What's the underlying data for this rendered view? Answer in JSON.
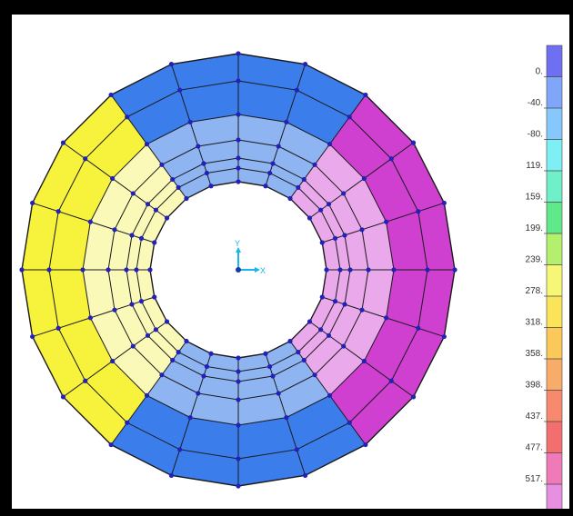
{
  "legend": {
    "labels": [
      "0.",
      "-40.",
      "-80.",
      "-119.",
      "-159.",
      "-199.",
      "-239.",
      "-278.",
      "-318.",
      "-358.",
      "-398.",
      "-437.",
      "-477.",
      "-517."
    ],
    "colors": [
      "#6f6ff2",
      "#7fa6f8",
      "#86c8fb",
      "#7ef0f5",
      "#6ff0c8",
      "#5fe98a",
      "#b4f06e",
      "#f7f777",
      "#fbe45a",
      "#fbc95a",
      "#f8ac6a",
      "#f6896e",
      "#f36f6f",
      "#f07ab8",
      "#e78fe0"
    ]
  },
  "axes": {
    "y_label": "Y",
    "x_label": "X"
  },
  "colors": {
    "blue_dark": "#3c7dec",
    "blue_light": "#8fb4f2",
    "yellow_outer": "#f7f23c",
    "yellow_inner": "#fbf9b8",
    "magenta_outer": "#cf3fd0",
    "magenta_inner": "#e9a9ea",
    "node": "#2222bb",
    "axis": "#17b6ee"
  }
}
